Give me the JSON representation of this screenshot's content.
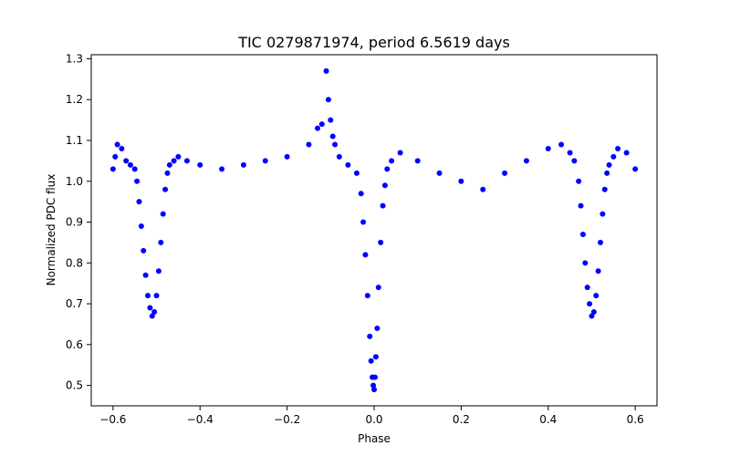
{
  "chart_data": {
    "type": "scatter",
    "title": "TIC 0279871974, period 6.5619 days",
    "xlabel": "Phase",
    "ylabel": "Normalized PDC flux",
    "xlim": [
      -0.65,
      0.65
    ],
    "ylim": [
      0.45,
      1.31
    ],
    "xticks": [
      -0.6,
      -0.4,
      -0.2,
      0.0,
      0.2,
      0.4,
      0.6
    ],
    "xtick_labels": [
      "−0.6",
      "−0.4",
      "−0.2",
      "0.0",
      "0.2",
      "0.4",
      "0.6"
    ],
    "yticks": [
      0.5,
      0.6,
      0.7,
      0.8,
      0.9,
      1.0,
      1.1,
      1.2,
      1.3
    ],
    "ytick_labels": [
      "0.5",
      "0.6",
      "0.7",
      "0.8",
      "0.9",
      "1.0",
      "1.1",
      "1.2",
      "1.3"
    ],
    "grid": false,
    "marker_color": "#0000ff",
    "series": [
      {
        "x": [
          -0.6,
          -0.595,
          -0.59,
          -0.58,
          -0.57,
          -0.56,
          -0.55,
          -0.545,
          -0.54,
          -0.535,
          -0.53,
          -0.525,
          -0.52,
          -0.515,
          -0.51,
          -0.505,
          -0.5,
          -0.495,
          -0.49,
          -0.485,
          -0.48,
          -0.475,
          -0.47,
          -0.46,
          -0.45,
          -0.43,
          -0.4,
          -0.35,
          -0.3,
          -0.25,
          -0.2,
          -0.15,
          -0.13,
          -0.12,
          -0.11,
          -0.105,
          -0.1,
          -0.095,
          -0.09,
          -0.08,
          -0.06,
          -0.04,
          -0.03,
          -0.025,
          -0.02,
          -0.015,
          -0.01,
          -0.007,
          -0.004,
          -0.002,
          0.0,
          0.002,
          0.004,
          0.007,
          0.01,
          0.015,
          0.02,
          0.025,
          0.03,
          0.04,
          0.06,
          0.1,
          0.15,
          0.2,
          0.25,
          0.3,
          0.35,
          0.4,
          0.43,
          0.45,
          0.46,
          0.47,
          0.475,
          0.48,
          0.485,
          0.49,
          0.495,
          0.5,
          0.505,
          0.51,
          0.515,
          0.52,
          0.525,
          0.53,
          0.535,
          0.54,
          0.55,
          0.56,
          0.58,
          0.6
        ],
        "y": [
          1.03,
          1.06,
          1.09,
          1.08,
          1.05,
          1.04,
          1.03,
          1.0,
          0.95,
          0.89,
          0.83,
          0.77,
          0.72,
          0.69,
          0.67,
          0.68,
          0.72,
          0.78,
          0.85,
          0.92,
          0.98,
          1.02,
          1.04,
          1.05,
          1.06,
          1.05,
          1.04,
          1.03,
          1.04,
          1.05,
          1.06,
          1.09,
          1.13,
          1.14,
          1.27,
          1.2,
          1.15,
          1.11,
          1.09,
          1.06,
          1.04,
          1.02,
          0.97,
          0.9,
          0.82,
          0.72,
          0.62,
          0.56,
          0.52,
          0.5,
          0.49,
          0.52,
          0.57,
          0.64,
          0.74,
          0.85,
          0.94,
          0.99,
          1.03,
          1.05,
          1.07,
          1.05,
          1.02,
          1.0,
          0.98,
          1.02,
          1.05,
          1.08,
          1.09,
          1.07,
          1.05,
          1.0,
          0.94,
          0.87,
          0.8,
          0.74,
          0.7,
          0.67,
          0.68,
          0.72,
          0.78,
          0.85,
          0.92,
          0.98,
          1.02,
          1.04,
          1.06,
          1.08,
          1.07,
          1.03
        ]
      }
    ]
  }
}
